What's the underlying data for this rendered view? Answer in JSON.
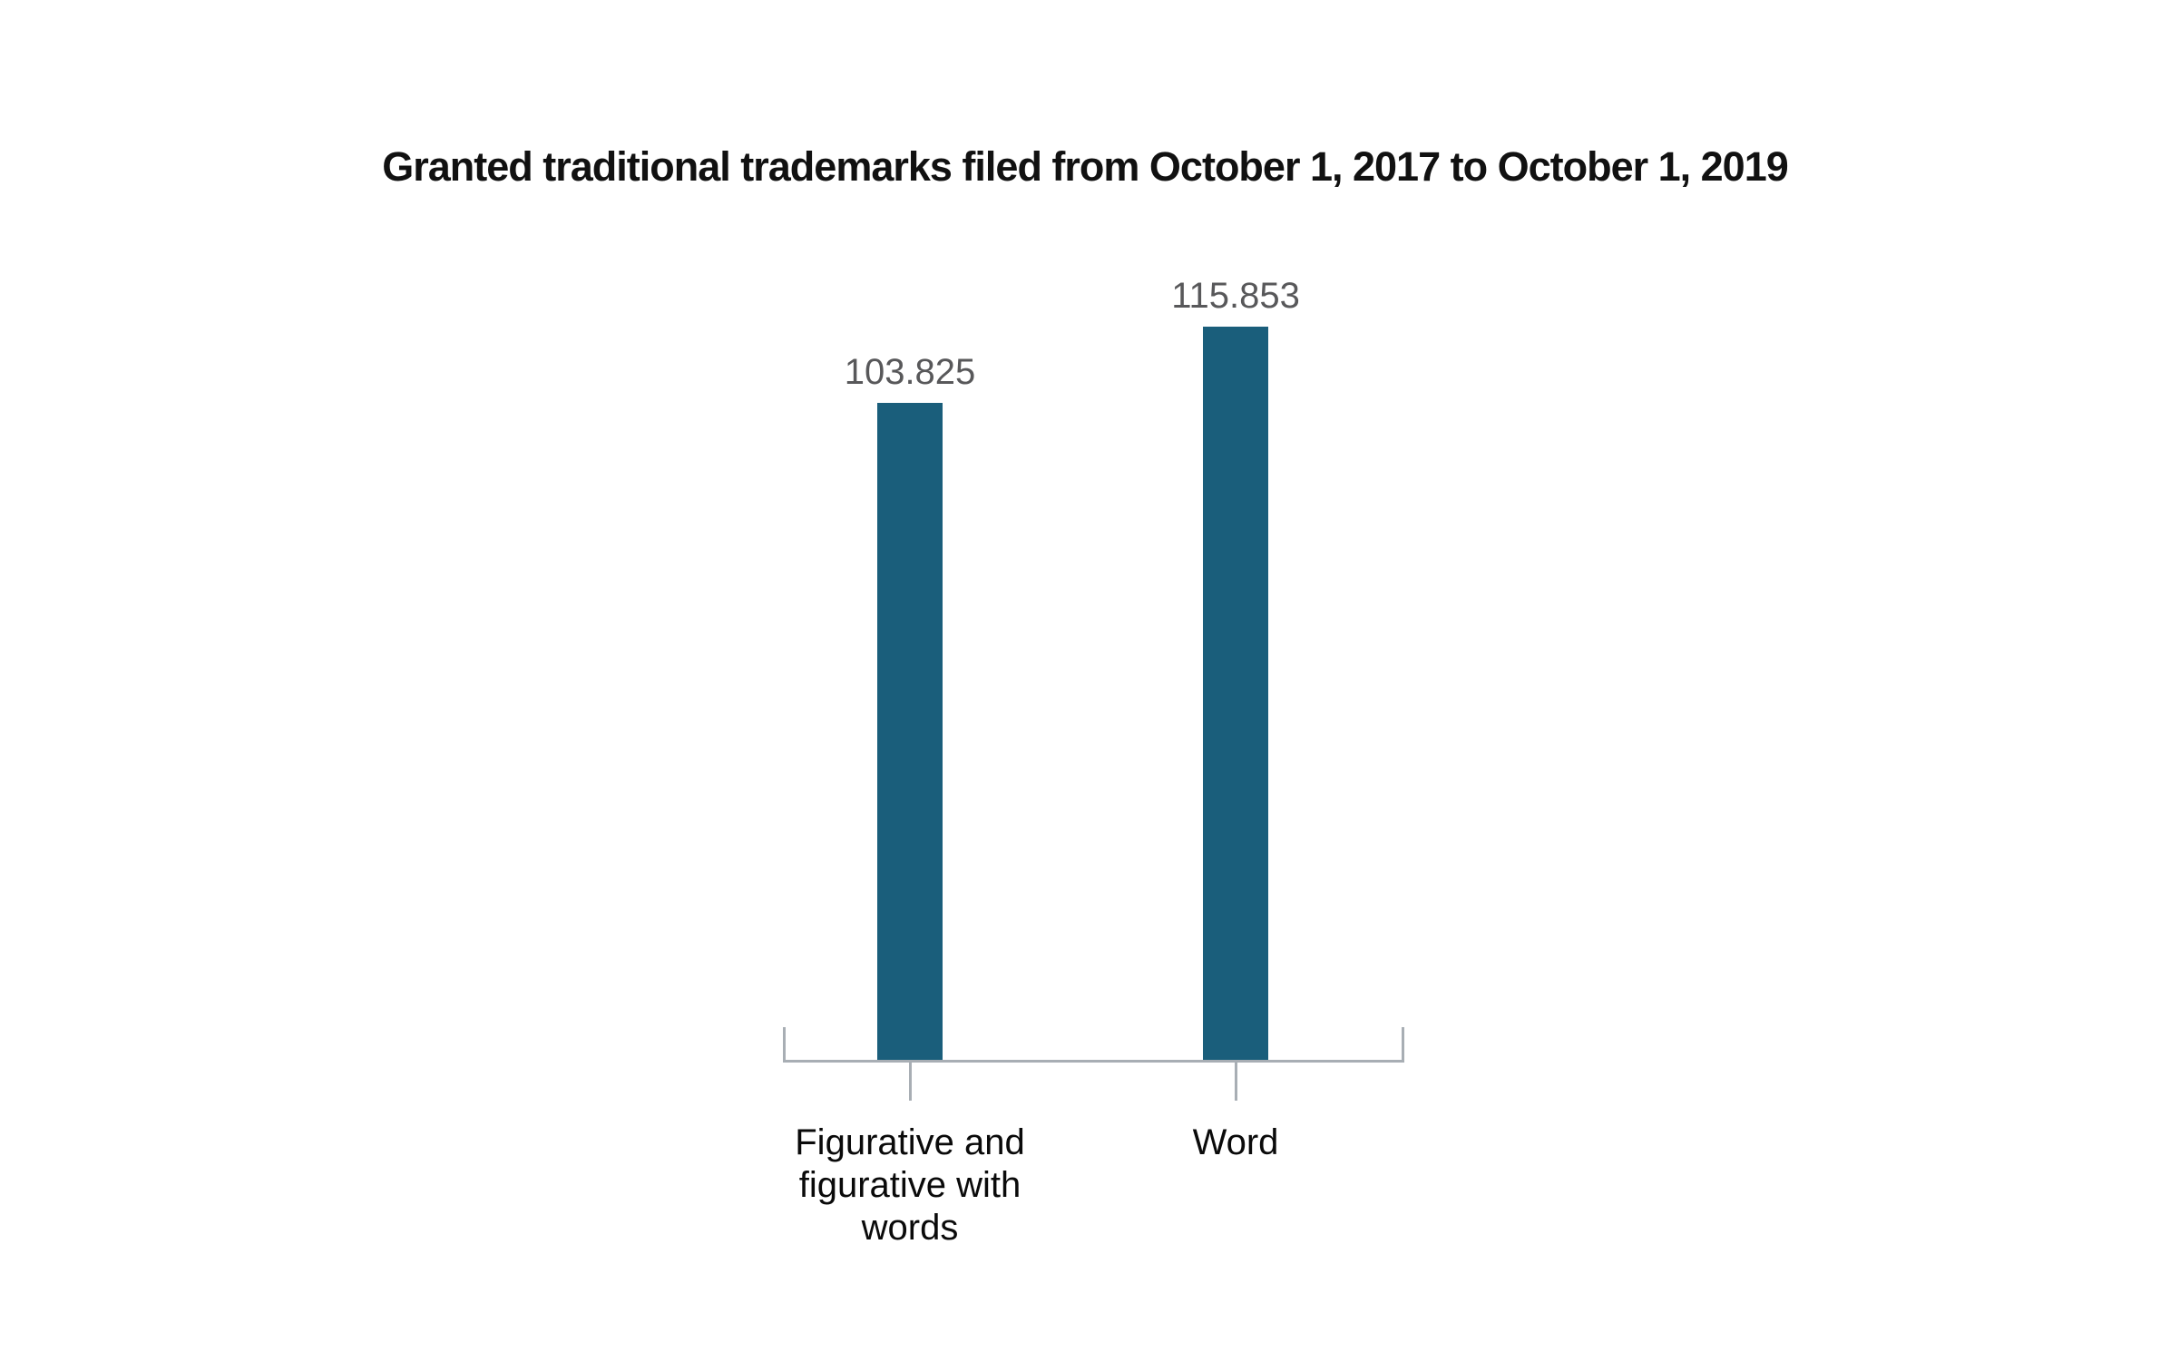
{
  "page": {
    "background": "#FFFFFF"
  },
  "chart_data": {
    "type": "bar",
    "title": "Granted traditional trademarks filed from October 1, 2017 to October 1, 2019",
    "categories": [
      "Figurative and figurative with words",
      "Word"
    ],
    "values": [
      103825,
      115853
    ],
    "value_labels": [
      "103.825",
      "115.853"
    ],
    "xlabel": "",
    "ylabel": "",
    "ylim": [
      0,
      115853
    ],
    "grid": false,
    "legend": false,
    "value_labels_shown": true,
    "y_axis_shown": false
  },
  "style": {
    "bar_color": "#1A5E7B",
    "axis_color": "#A8AEB4",
    "value_label_color": "#58585A",
    "category_label_color": "#0A0A0A",
    "title_color": "#111111"
  }
}
